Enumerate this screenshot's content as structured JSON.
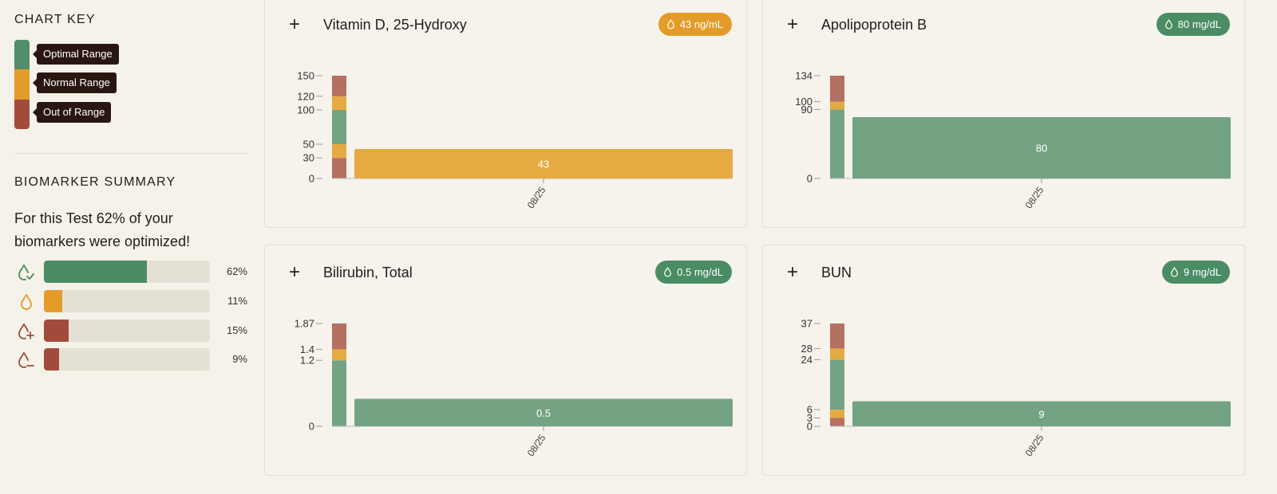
{
  "colors": {
    "optimal": "#74a384",
    "normal": "#e6aa42",
    "out": "#b47161",
    "track": "#e5e0d4",
    "optimalDark": "#4a8c64",
    "normalDark": "#e39c2a",
    "outDark": "#a24b3a"
  },
  "chart_key": {
    "title": "CHART KEY",
    "items": [
      {
        "label": "Optimal Range",
        "color": "#4f8e69"
      },
      {
        "label": "Normal Range",
        "color": "#e39c2a"
      },
      {
        "label": "Out of Range",
        "color": "#a24b3a"
      }
    ]
  },
  "summary": {
    "title": "BIOMARKER SUMMARY",
    "text": "For this Test 62% of your biomarkers were optimized!",
    "rows": [
      {
        "icon": "drop-check-icon",
        "percent_label": "62%",
        "value": 62,
        "color": "#4a8c64"
      },
      {
        "icon": "drop-icon",
        "percent_label": "11%",
        "value": 11,
        "color": "#e39c2a"
      },
      {
        "icon": "drop-plus-icon",
        "percent_label": "15%",
        "value": 15,
        "color": "#a24b3a"
      },
      {
        "icon": "drop-minus-icon",
        "percent_label": "9%",
        "value": 9,
        "color": "#a24b3a"
      }
    ]
  },
  "cards": [
    {
      "title": "Vitamin D, 25-Hydroxy",
      "badge": "43 ng/mL",
      "badge_status": "normal",
      "plus": "+"
    },
    {
      "title": "Apolipoprotein B",
      "badge": "80 mg/dL",
      "badge_status": "optimal",
      "plus": "+"
    },
    {
      "title": "Bilirubin, Total",
      "badge": "0.5 mg/dL",
      "badge_status": "optimal",
      "plus": "+"
    },
    {
      "title": "BUN",
      "badge": "9 mg/dL",
      "badge_status": "optimal",
      "plus": "+"
    }
  ],
  "chart_data": [
    {
      "type": "bar",
      "title": "Vitamin D, 25-Hydroxy",
      "ylim": [
        0,
        150
      ],
      "ticks": [
        {
          "v": 0,
          "label": "0"
        },
        {
          "v": 30,
          "label": "30"
        },
        {
          "v": 50,
          "label": "50"
        },
        {
          "v": 100,
          "label": "100"
        },
        {
          "v": 120,
          "label": "120"
        },
        {
          "v": 150,
          "label": "150"
        }
      ],
      "bands": [
        {
          "from": 0,
          "to": 30,
          "status": "out"
        },
        {
          "from": 30,
          "to": 50,
          "status": "normal"
        },
        {
          "from": 50,
          "to": 100,
          "status": "optimal"
        },
        {
          "from": 100,
          "to": 120,
          "status": "normal"
        },
        {
          "from": 120,
          "to": 150,
          "status": "out"
        }
      ],
      "categories": [
        "08/25"
      ],
      "values": [
        43
      ],
      "value_labels": [
        "43"
      ],
      "bar_status": [
        "normal"
      ]
    },
    {
      "type": "bar",
      "title": "Apolipoprotein B",
      "ylim": [
        0,
        134
      ],
      "ticks": [
        {
          "v": 0,
          "label": "0"
        },
        {
          "v": 90,
          "label": "90"
        },
        {
          "v": 100,
          "label": "100"
        },
        {
          "v": 134,
          "label": "134"
        }
      ],
      "bands": [
        {
          "from": 0,
          "to": 90,
          "status": "optimal"
        },
        {
          "from": 90,
          "to": 100,
          "status": "normal"
        },
        {
          "from": 100,
          "to": 134,
          "status": "out"
        }
      ],
      "categories": [
        "08/25"
      ],
      "values": [
        80
      ],
      "value_labels": [
        "80"
      ],
      "bar_status": [
        "optimal"
      ]
    },
    {
      "type": "bar",
      "title": "Bilirubin, Total",
      "ylim": [
        0,
        1.87
      ],
      "ticks": [
        {
          "v": 0,
          "label": "0"
        },
        {
          "v": 1.2,
          "label": "1.2"
        },
        {
          "v": 1.4,
          "label": "1.4"
        },
        {
          "v": 1.87,
          "label": "1.87"
        }
      ],
      "bands": [
        {
          "from": 0,
          "to": 1.2,
          "status": "optimal"
        },
        {
          "from": 1.2,
          "to": 1.4,
          "status": "normal"
        },
        {
          "from": 1.4,
          "to": 1.87,
          "status": "out"
        }
      ],
      "categories": [
        "08/25"
      ],
      "values": [
        0.5
      ],
      "value_labels": [
        "0.5"
      ],
      "bar_status": [
        "optimal"
      ]
    },
    {
      "type": "bar",
      "title": "BUN",
      "ylim": [
        0,
        37
      ],
      "ticks": [
        {
          "v": 0,
          "label": "0"
        },
        {
          "v": 3,
          "label": "3"
        },
        {
          "v": 6,
          "label": "6"
        },
        {
          "v": 24,
          "label": "24"
        },
        {
          "v": 28,
          "label": "28"
        },
        {
          "v": 37,
          "label": "37"
        }
      ],
      "bands": [
        {
          "from": 0,
          "to": 3,
          "status": "out"
        },
        {
          "from": 3,
          "to": 6,
          "status": "normal"
        },
        {
          "from": 6,
          "to": 24,
          "status": "optimal"
        },
        {
          "from": 24,
          "to": 28,
          "status": "normal"
        },
        {
          "from": 28,
          "to": 37,
          "status": "out"
        }
      ],
      "categories": [
        "08/25"
      ],
      "values": [
        9
      ],
      "value_labels": [
        "9"
      ],
      "bar_status": [
        "optimal"
      ]
    }
  ]
}
